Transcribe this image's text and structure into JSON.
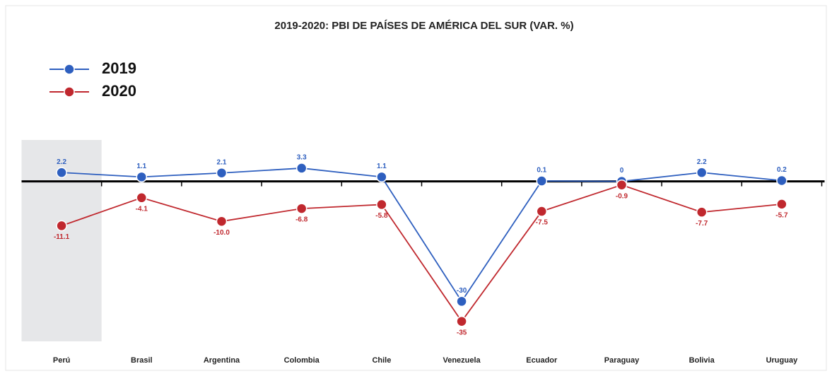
{
  "chart_data": {
    "type": "line",
    "title": "2019-2020: PBI DE PAÍSES DE AMÉRICA DEL SUR (VAR. %)",
    "categories": [
      "Perú",
      "Brasil",
      "Argentina",
      "Colombia",
      "Chile",
      "Venezuela",
      "Ecuador",
      "Paraguay",
      "Bolivia",
      "Uruguay"
    ],
    "series": [
      {
        "name": "2019",
        "color": "#2e5fbf",
        "values": [
          2.2,
          1.1,
          2.1,
          3.3,
          1.1,
          -30,
          0.1,
          0,
          2.2,
          0.2
        ]
      },
      {
        "name": "2020",
        "color": "#c0282e",
        "values": [
          -11.1,
          -4.1,
          -10,
          -6.8,
          -5.8,
          -35,
          -7.5,
          -0.9,
          -7.7,
          -5.7
        ],
        "value_labels": [
          "-11.1",
          "-4.1",
          "-10.0",
          "-6.8",
          "-5.8",
          "-35",
          "-7.5",
          "-0.9",
          "-7.7",
          "-5.7"
        ]
      }
    ],
    "ylim": [
      -40,
      10
    ],
    "legend": "upper left",
    "highlight_color": "#e6e7e9"
  }
}
